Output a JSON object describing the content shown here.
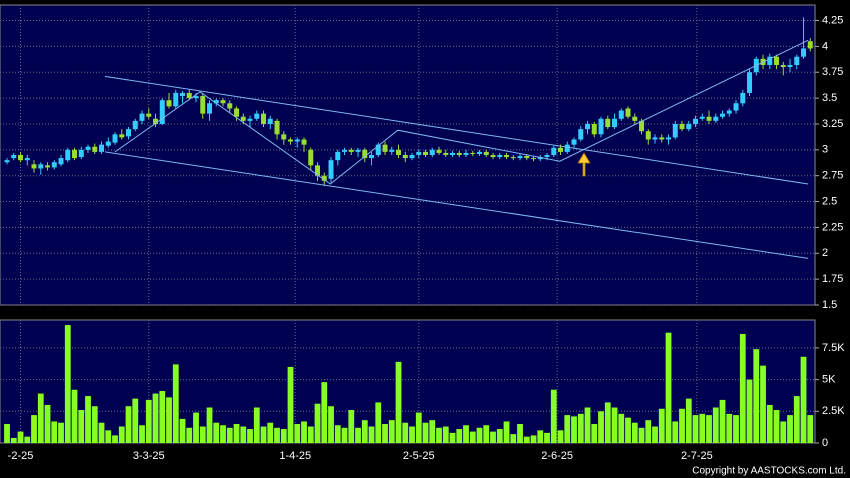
{
  "chart_data": [
    {
      "type": "candlestick",
      "up_color": "#33ccff",
      "down_color": "#99dd33",
      "xlim": [
        -1.04,
        119.7
      ],
      "ylim": [
        1.5,
        4.4
      ],
      "yticks": [
        1.5,
        1.75,
        2,
        2.25,
        2.5,
        2.75,
        3,
        3.25,
        3.5,
        3.75,
        4,
        4.25
      ],
      "grid": true,
      "open": [
        2.88,
        2.92,
        2.95,
        2.9,
        2.86,
        2.82,
        2.85,
        2.83,
        2.86,
        2.9,
        3.0,
        2.93,
        3.0,
        3.03,
        2.98,
        3.04,
        3.07,
        3.15,
        3.13,
        3.2,
        3.28,
        3.35,
        3.3,
        3.25,
        3.48,
        3.42,
        3.52,
        3.55,
        3.5,
        3.52,
        3.35,
        3.45,
        3.48,
        3.45,
        3.4,
        3.32,
        3.28,
        3.3,
        3.35,
        3.25,
        3.28,
        3.15,
        3.1,
        3.08,
        3.1,
        3.0,
        2.85,
        2.75,
        2.72,
        2.9,
        2.98,
        3.0,
        2.98,
        3.0,
        2.92,
        2.95,
        3.05,
        2.98,
        3.0,
        2.95,
        2.92,
        2.95,
        2.98,
        2.95,
        3.0,
        2.97,
        2.95,
        2.97,
        2.95,
        2.97,
        2.96,
        2.98,
        2.95,
        2.93,
        2.95,
        2.93,
        2.92,
        2.94,
        2.92,
        2.91,
        2.93,
        2.95,
        3.02,
        2.98,
        3.05,
        3.1,
        3.2,
        3.25,
        3.15,
        3.3,
        3.22,
        3.3,
        3.4,
        3.32,
        3.28,
        3.18,
        3.1,
        3.12,
        3.1,
        3.12,
        3.25,
        3.2,
        3.25,
        3.3,
        3.32,
        3.28,
        3.32,
        3.35,
        3.38,
        3.45,
        3.55,
        3.75,
        3.88,
        3.82,
        3.9,
        3.82,
        3.8,
        3.82,
        3.9,
        4.05
      ],
      "high": [
        2.92,
        2.97,
        2.98,
        2.95,
        2.9,
        2.88,
        2.88,
        2.9,
        2.95,
        3.02,
        3.02,
        3.03,
        3.05,
        3.06,
        3.08,
        3.12,
        3.17,
        3.2,
        3.22,
        3.3,
        3.38,
        3.4,
        3.35,
        3.5,
        3.55,
        3.58,
        3.57,
        3.58,
        3.55,
        3.55,
        3.48,
        3.5,
        3.5,
        3.48,
        3.42,
        3.35,
        3.33,
        3.38,
        3.38,
        3.33,
        3.3,
        3.18,
        3.12,
        3.12,
        3.12,
        3.02,
        2.88,
        2.78,
        2.93,
        3.0,
        3.02,
        3.02,
        3.02,
        3.02,
        2.98,
        3.07,
        3.08,
        3.03,
        3.05,
        2.98,
        2.97,
        3.0,
        3.0,
        3.02,
        3.03,
        3.0,
        2.99,
        2.99,
        3.0,
        2.99,
        3.0,
        3.0,
        2.97,
        2.97,
        2.97,
        2.95,
        2.96,
        2.96,
        2.94,
        2.95,
        2.97,
        3.04,
        3.05,
        3.08,
        3.12,
        3.23,
        3.28,
        3.27,
        3.32,
        3.33,
        3.35,
        3.4,
        3.42,
        3.35,
        3.3,
        3.2,
        3.15,
        3.15,
        3.15,
        3.28,
        3.28,
        3.28,
        3.33,
        3.35,
        3.38,
        3.35,
        3.38,
        3.4,
        3.48,
        3.58,
        3.78,
        3.9,
        3.92,
        3.93,
        3.92,
        3.85,
        3.88,
        3.92,
        4.28,
        4.08
      ],
      "low": [
        2.86,
        2.9,
        2.88,
        2.85,
        2.78,
        2.76,
        2.8,
        2.81,
        2.84,
        2.88,
        2.9,
        2.91,
        2.97,
        2.96,
        2.96,
        3.02,
        3.05,
        3.1,
        3.1,
        3.18,
        3.25,
        3.3,
        3.22,
        3.24,
        3.4,
        3.4,
        3.45,
        3.48,
        3.46,
        3.3,
        3.28,
        3.42,
        3.42,
        3.36,
        3.28,
        3.25,
        3.22,
        3.28,
        3.22,
        3.2,
        3.1,
        3.05,
        3.05,
        3.02,
        2.98,
        2.8,
        2.7,
        2.65,
        2.68,
        2.85,
        2.95,
        2.95,
        2.93,
        2.88,
        2.85,
        2.93,
        2.95,
        2.95,
        2.92,
        2.88,
        2.9,
        2.92,
        2.93,
        2.93,
        2.95,
        2.93,
        2.93,
        2.93,
        2.93,
        2.94,
        2.94,
        2.93,
        2.91,
        2.91,
        2.91,
        2.9,
        2.9,
        2.9,
        2.89,
        2.89,
        2.9,
        2.93,
        2.95,
        2.96,
        3.02,
        3.08,
        3.15,
        3.12,
        3.12,
        3.2,
        3.2,
        3.28,
        3.3,
        3.25,
        3.15,
        3.05,
        3.06,
        3.07,
        3.05,
        3.1,
        3.18,
        3.18,
        3.22,
        3.28,
        3.25,
        3.26,
        3.3,
        3.32,
        3.35,
        3.42,
        3.52,
        3.72,
        3.78,
        3.78,
        3.78,
        3.72,
        3.75,
        3.78,
        3.88,
        3.95
      ],
      "close": [
        2.9,
        2.95,
        2.9,
        2.92,
        2.82,
        2.86,
        2.83,
        2.88,
        2.92,
        3.0,
        2.92,
        3.0,
        3.03,
        2.98,
        3.05,
        3.08,
        3.15,
        3.12,
        3.2,
        3.28,
        3.35,
        3.32,
        3.25,
        3.48,
        3.42,
        3.55,
        3.55,
        3.5,
        3.52,
        3.35,
        3.45,
        3.48,
        3.45,
        3.4,
        3.32,
        3.28,
        3.3,
        3.35,
        3.25,
        3.3,
        3.15,
        3.1,
        3.08,
        3.1,
        3.05,
        2.85,
        2.75,
        2.7,
        2.9,
        2.98,
        3.0,
        2.98,
        3.0,
        2.92,
        2.95,
        3.05,
        2.98,
        3.0,
        2.95,
        2.92,
        2.95,
        2.98,
        2.95,
        3.0,
        2.97,
        2.95,
        2.97,
        2.95,
        2.97,
        2.96,
        2.98,
        2.95,
        2.93,
        2.95,
        2.93,
        2.92,
        2.94,
        2.92,
        2.91,
        2.93,
        2.95,
        3.02,
        2.98,
        3.05,
        3.1,
        3.2,
        3.25,
        3.15,
        3.3,
        3.22,
        3.3,
        3.38,
        3.32,
        3.28,
        3.18,
        3.1,
        3.12,
        3.1,
        3.12,
        3.25,
        3.2,
        3.25,
        3.3,
        3.32,
        3.28,
        3.32,
        3.35,
        3.38,
        3.45,
        3.55,
        3.75,
        3.88,
        3.82,
        3.9,
        3.82,
        3.8,
        3.82,
        3.9,
        3.98,
        3.98
      ],
      "line_color": "#7fb8f0",
      "lines": [
        {
          "x": [
            14.5,
            118.7
          ],
          "y": [
            3.71,
            2.67
          ]
        },
        {
          "x": [
            14.5,
            118.7
          ],
          "y": [
            2.98,
            1.95
          ]
        },
        {
          "x": [
            16,
            28.6,
            47.9,
            57.9,
            81.9,
            118.7
          ],
          "y": [
            2.98,
            3.56,
            2.67,
            3.19,
            2.89,
            4.06
          ]
        }
      ]
    },
    {
      "type": "bar",
      "color": "#88ff22",
      "xlim": [
        -1.04,
        119.7
      ],
      "ylim": [
        0,
        9700
      ],
      "yticks": [
        0,
        {
          "value": 2500,
          "label": "2.5K"
        },
        {
          "value": 5000,
          "label": "5K"
        },
        {
          "value": 7500,
          "label": "7.5K"
        }
      ],
      "xticks": [
        {
          "value": 2,
          "label": "-2-25"
        },
        {
          "value": 21,
          "label": "3-3-25"
        },
        {
          "value": 42.7,
          "label": "1-4-25"
        },
        {
          "value": 61,
          "label": "2-5-25"
        },
        {
          "value": 81.5,
          "label": "2-6-25"
        },
        {
          "value": 102.2,
          "label": "2-7-25"
        }
      ],
      "grid": true,
      "values": [
        1500,
        400,
        900,
        500,
        2200,
        3900,
        3000,
        1700,
        1600,
        9300,
        4200,
        2600,
        3700,
        2900,
        1600,
        1000,
        600,
        1300,
        2900,
        3500,
        1400,
        3400,
        3900,
        4100,
        3600,
        6200,
        1900,
        1200,
        2400,
        1300,
        2800,
        1600,
        1400,
        1200,
        1500,
        1300,
        1100,
        2800,
        1300,
        1600,
        1200,
        1100,
        6000,
        1500,
        1700,
        1300,
        3100,
        4800,
        2900,
        1400,
        1200,
        2600,
        1200,
        1800,
        1300,
        3200,
        1500,
        1800,
        6400,
        1600,
        1300,
        2400,
        1600,
        1800,
        1200,
        1300,
        800,
        1100,
        1400,
        900,
        1200,
        1400,
        900,
        1100,
        1700,
        700,
        1500,
        500,
        600,
        1000,
        800,
        4200,
        1000,
        2200,
        2100,
        2300,
        2800,
        1500,
        2500,
        3200,
        2800,
        2300,
        2000,
        1600,
        1200,
        1800,
        1300,
        2700,
        8700,
        1700,
        2700,
        3500,
        2200,
        2300,
        2200,
        2800,
        3400,
        2300,
        2200,
        8600,
        5000,
        7400,
        6100,
        3000,
        2600,
        1700,
        2200,
        3700,
        6800,
        2200
      ],
      "copyright": "Copyright by AASTOCKS.com Ltd."
    }
  ]
}
